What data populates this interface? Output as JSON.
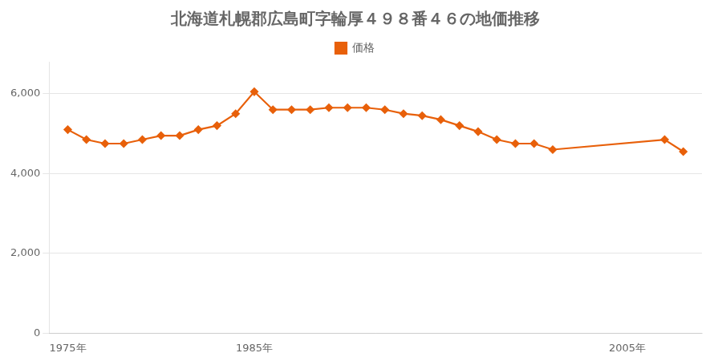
{
  "chart_data": {
    "type": "line",
    "title": "北海道札幌郡広島町字輪厚４９８番４６の地価推移",
    "x": [
      1975,
      1976,
      1977,
      1978,
      1979,
      1980,
      1981,
      1982,
      1983,
      1984,
      1985,
      1986,
      1987,
      1988,
      1989,
      1990,
      1991,
      1992,
      1993,
      1994,
      1995,
      1996,
      1997,
      1998,
      1999,
      2000,
      2001,
      2007,
      2008
    ],
    "series": [
      {
        "name": "価格",
        "color": "#e8600a",
        "marker": "diamond",
        "values": [
          5100,
          4850,
          4750,
          4750,
          4850,
          4950,
          4950,
          5100,
          5200,
          5500,
          6050,
          5600,
          5600,
          5600,
          5650,
          5650,
          5650,
          5600,
          5500,
          5450,
          5350,
          5200,
          5050,
          4850,
          4750,
          4750,
          4600,
          4850,
          4550
        ]
      }
    ],
    "xlim": [
      1974,
      2009
    ],
    "xticks": [
      {
        "value": 1975,
        "label": "1975年"
      },
      {
        "value": 1985,
        "label": "1985年"
      },
      {
        "value": 2005,
        "label": "2005年"
      }
    ],
    "ylim": [
      0,
      6800
    ],
    "yticks": [
      0,
      {
        "value": 2000,
        "label": "2,000"
      },
      {
        "value": 4000,
        "label": "4,000"
      },
      {
        "value": 6000,
        "label": "6,000"
      }
    ],
    "grid": "y",
    "legend": "top"
  }
}
